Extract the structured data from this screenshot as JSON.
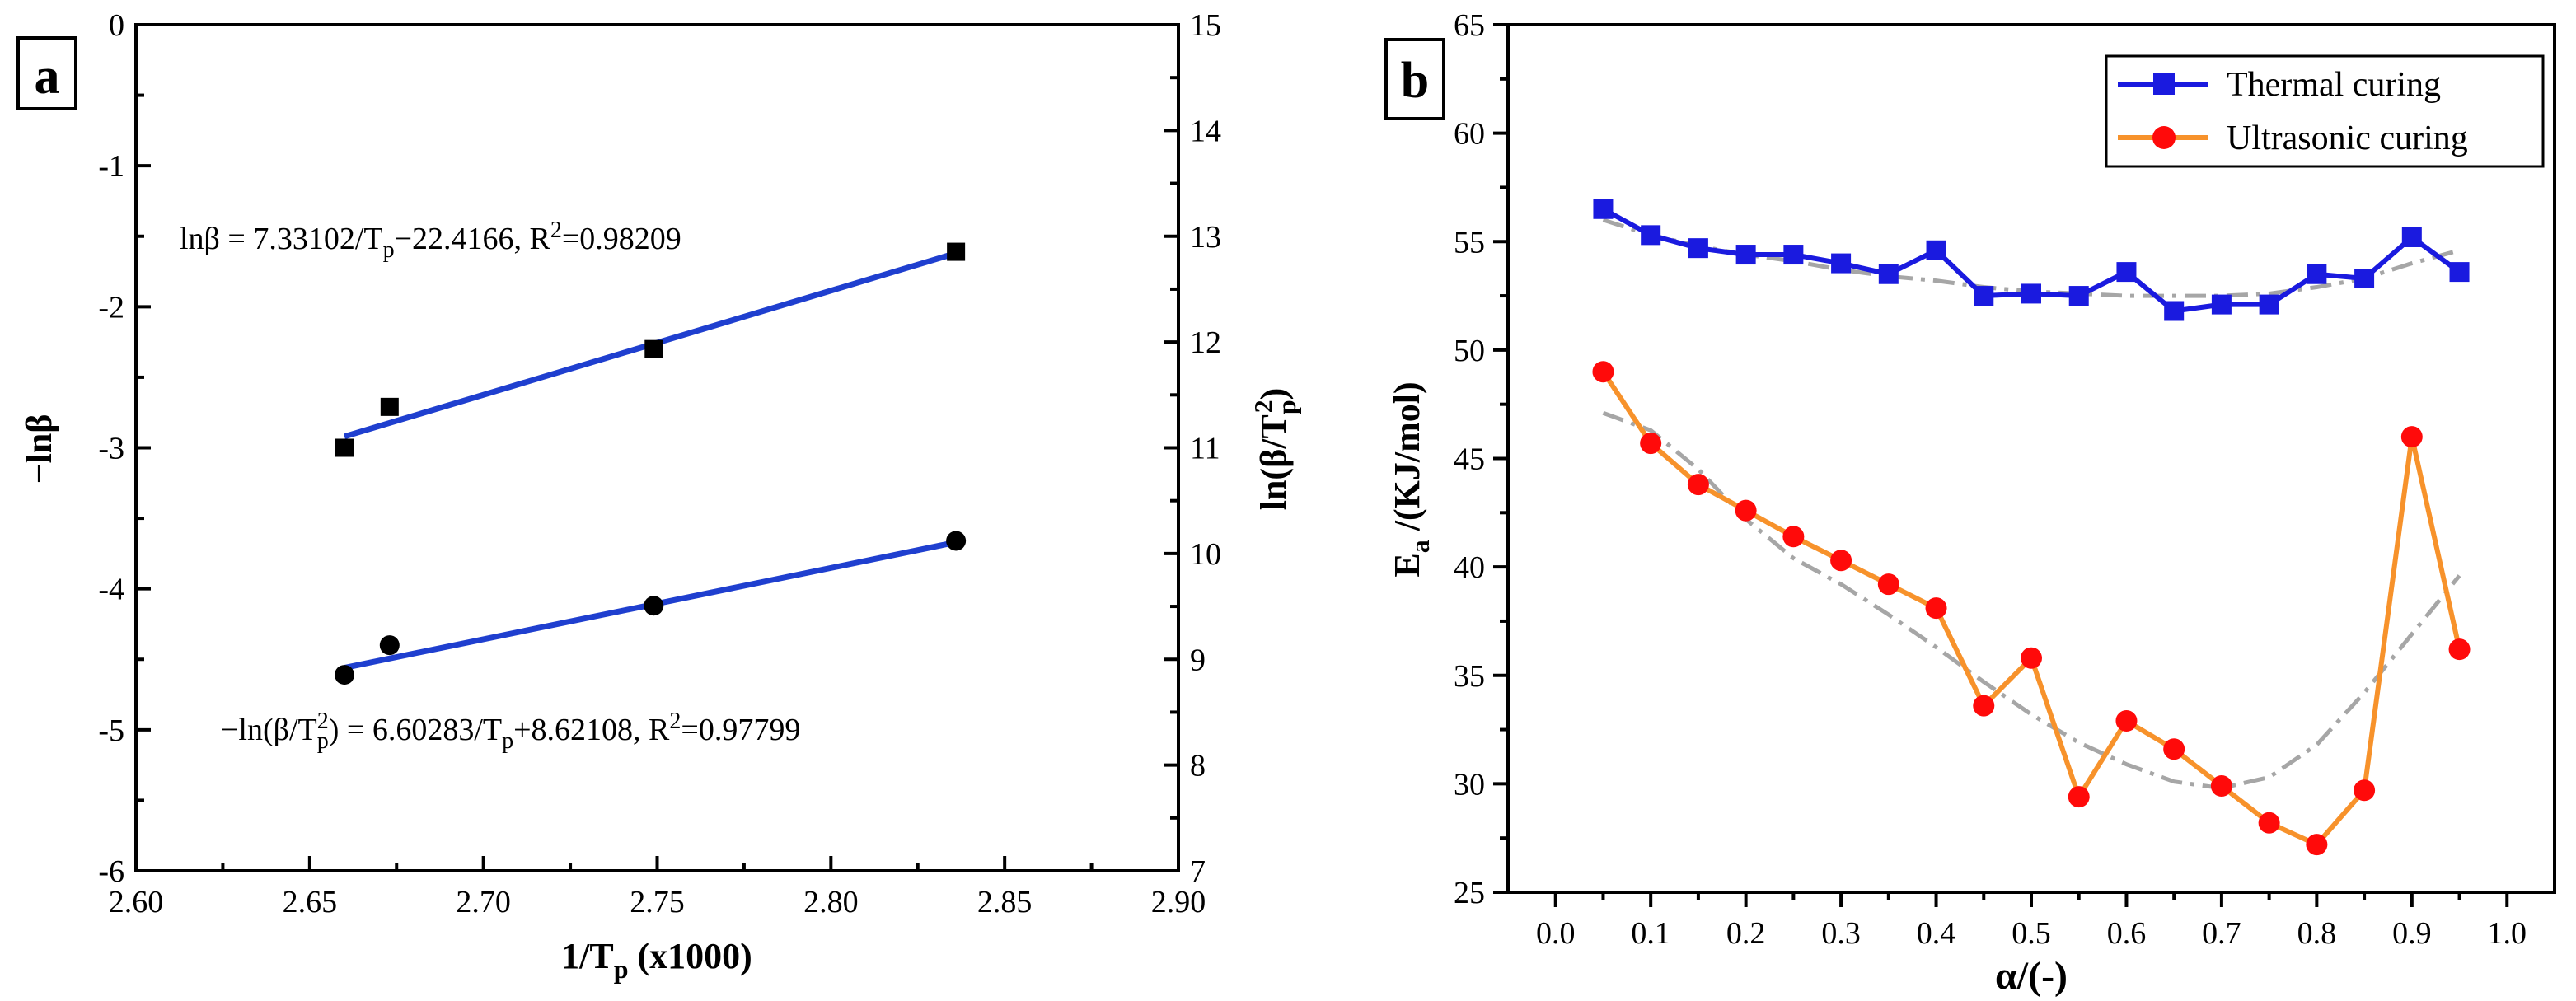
{
  "chart_data": [
    {
      "type": "scatter",
      "panel_label": "a",
      "xlabel_main": "1/T",
      "xlabel_sub": "p",
      "xlabel_tail": " (x1000)",
      "ylabel_left": "−lnβ",
      "ylabel_right_main": "ln(β/T",
      "ylabel_right_sub": "p",
      "ylabel_right_sup": "2",
      "ylabel_right_tail": ")",
      "xlim": [
        2.6,
        2.9
      ],
      "xticks": [
        "2.60",
        "2.65",
        "2.70",
        "2.75",
        "2.80",
        "2.85",
        "2.90"
      ],
      "ylim_left": [
        -6,
        0
      ],
      "yticks_left": [
        "0",
        "-1",
        "-2",
        "-3",
        "-4",
        "-5",
        "-6"
      ],
      "ylim_right": [
        7,
        15
      ],
      "yticks_right": [
        "15",
        "14",
        "13",
        "12",
        "11",
        "10",
        "9",
        "8",
        "7"
      ],
      "series": [
        {
          "name": "-lnβ",
          "marker": "square",
          "x": [
            2.66,
            2.673,
            2.749,
            2.836
          ],
          "y": [
            -3.0,
            -2.71,
            -2.3,
            -1.61
          ],
          "fit": {
            "x": [
              2.66,
              2.836
            ],
            "y": [
              -2.92,
              -1.62
            ]
          },
          "equation": {
            "p1": "lnβ = 7.33102/T",
            "p1_sub": "p",
            "p2": "−22.4166, R",
            "p2_sup": "2",
            "p3": "=0.98209"
          }
        },
        {
          "name": "-ln(β/Tp²)",
          "marker": "circle",
          "x": [
            2.66,
            2.673,
            2.749,
            2.836
          ],
          "y": [
            -4.61,
            -4.4,
            -4.12,
            -3.66
          ],
          "fit": {
            "x": [
              2.66,
              2.836
            ],
            "y": [
              -4.56,
              -3.67
            ]
          },
          "equation": {
            "p1": "−ln(β/T",
            "p1_sub": "p",
            "p1_sup": "2",
            "p2": ") = 6.60283/T",
            "p2_sub": "p",
            "p3": "+8.62108, R",
            "p3_sup": "2",
            "p4": "=0.97799"
          }
        }
      ],
      "colors": {
        "fit": "#1f3fcf",
        "marker": "#000000"
      }
    },
    {
      "type": "line",
      "panel_label": "b",
      "xlabel": "α/(-)",
      "ylabel_main": "E",
      "ylabel_sub": "a",
      "ylabel_tail": " /(KJ/mol)",
      "xlim": [
        -0.05,
        1.05
      ],
      "xticks": [
        "0.0",
        "0.1",
        "0.2",
        "0.3",
        "0.4",
        "0.5",
        "0.6",
        "0.7",
        "0.8",
        "0.9",
        "1.0"
      ],
      "ylim": [
        25,
        65
      ],
      "yticks": [
        "65",
        "60",
        "55",
        "50",
        "45",
        "40",
        "35",
        "30",
        "25"
      ],
      "legend_position": "top-right",
      "x": [
        0.05,
        0.1,
        0.15,
        0.2,
        0.25,
        0.3,
        0.35,
        0.4,
        0.45,
        0.5,
        0.55,
        0.6,
        0.65,
        0.7,
        0.75,
        0.8,
        0.85,
        0.9,
        0.95
      ],
      "series": [
        {
          "name": "Thermal curing",
          "marker": "square",
          "color": "#1a1adf",
          "values": [
            56.5,
            55.3,
            54.7,
            54.4,
            54.4,
            54.0,
            53.5,
            54.6,
            52.5,
            52.6,
            52.5,
            53.6,
            51.8,
            52.1,
            52.1,
            53.5,
            53.3,
            55.2,
            53.6
          ],
          "trend": [
            56.0,
            55.3,
            54.8,
            54.4,
            54.1,
            53.7,
            53.4,
            53.2,
            52.9,
            52.7,
            52.6,
            52.5,
            52.5,
            52.5,
            52.6,
            52.9,
            53.3,
            54.0,
            54.6
          ]
        },
        {
          "name": "Ultrasonic curing",
          "marker": "circle",
          "color": "#f7922b",
          "marker_color": "#ff0a0a",
          "values": [
            49.0,
            45.7,
            43.8,
            42.6,
            41.4,
            40.3,
            39.2,
            38.1,
            33.6,
            35.8,
            29.4,
            32.9,
            31.6,
            29.9,
            28.2,
            27.2,
            29.7,
            46.0,
            36.2
          ],
          "trend": [
            47.1,
            46.3,
            44.5,
            42.2,
            40.4,
            39.2,
            37.8,
            36.3,
            34.7,
            33.2,
            31.9,
            30.9,
            30.1,
            29.8,
            30.3,
            31.8,
            34.2,
            36.9,
            39.6
          ]
        }
      ],
      "trend_color": "#a6a6a6"
    }
  ]
}
